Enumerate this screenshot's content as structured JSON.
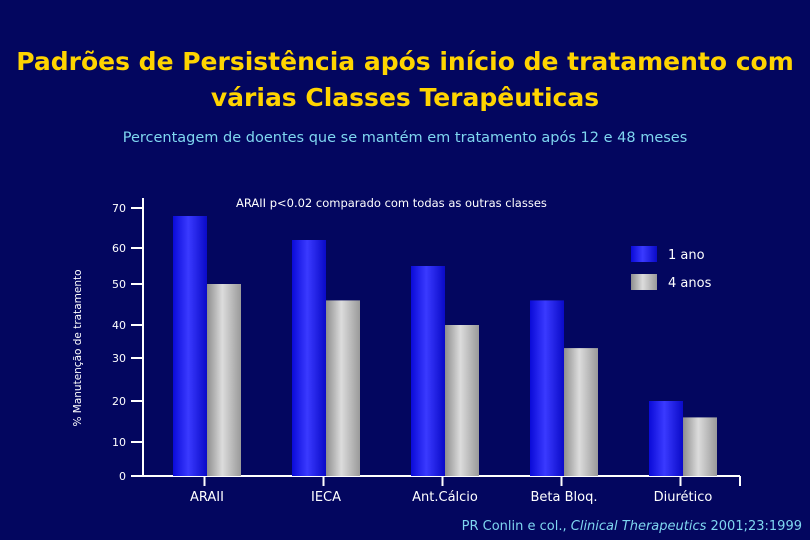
{
  "title_line1": "Padrões de Persistência após início de tratamento com",
  "title_line2": "várias Classes Terapêuticas",
  "subtitle": "Percentagem de doentes que se mantém em tratamento após 12 e 48 meses",
  "source": {
    "prefix": "PR",
    "authors": "Conlin e col.,",
    "journal": "Clinical Therapeutics",
    "citation": "2001;23:1999"
  },
  "colors": {
    "background": "#03065f",
    "title": "#ffd400",
    "subtitle": "#7fd6f0",
    "series_1ano": "#1a1aff",
    "series_4anos": "#b4b4b4"
  },
  "chart_data": {
    "type": "bar",
    "title": "Percentagem de doentes que se mantém em tratamento após 12 e 48 meses",
    "ylabel": "% Manutenção de tratamento",
    "xlabel": "",
    "categories": [
      "ARAII",
      "IECA",
      "Ant.Cálcio",
      "Beta Bloq.",
      "Diurético"
    ],
    "series": [
      {
        "name": "1 ano",
        "values": [
          68,
          62,
          55,
          46,
          20
        ]
      },
      {
        "name": "4 anos",
        "values": [
          50,
          46,
          40,
          33,
          16
        ]
      }
    ],
    "yticks": [
      "0",
      "10",
      "20",
      "30",
      "40",
      "50",
      "60",
      "70"
    ],
    "ytick_values": [
      0,
      10,
      20,
      30,
      40,
      50,
      60,
      70
    ],
    "ylim": [
      0,
      70
    ],
    "annotation": "ARAII p<0.02 comparado com todas as outras classes",
    "legend_position": "top-right",
    "grid": false
  }
}
